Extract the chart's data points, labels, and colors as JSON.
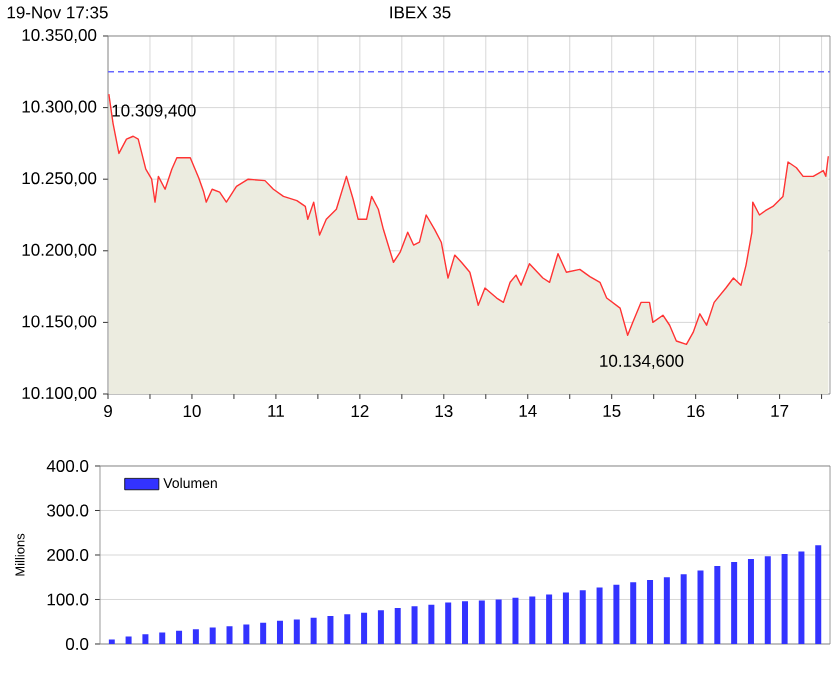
{
  "chart_data": [
    {
      "type": "area",
      "title": "IBEX 35",
      "annotations": [
        "19-Nov 17:35",
        {
          "text": "10.309,400",
          "x": 9.01,
          "y": 10309.4
        },
        {
          "text": "10.134,600",
          "x": 15.89,
          "y": 10134.6
        }
      ],
      "series": [
        {
          "color": "#ff3333",
          "x": [
            9.01,
            9.06,
            9.13,
            9.22,
            9.3,
            9.36,
            9.45,
            9.52,
            9.56,
            9.6,
            9.68,
            9.76,
            9.82,
            9.98,
            10.08,
            10.14,
            10.17,
            10.24,
            10.33,
            10.41,
            10.53,
            10.67,
            10.87,
            10.97,
            11.09,
            11.25,
            11.35,
            11.38,
            11.45,
            11.52,
            11.6,
            11.72,
            11.84,
            11.92,
            11.98,
            12.08,
            12.14,
            12.22,
            12.28,
            12.4,
            12.48,
            12.57,
            12.64,
            12.71,
            12.79,
            12.89,
            12.97,
            13.05,
            13.13,
            13.21,
            13.31,
            13.41,
            13.49,
            13.63,
            13.71,
            13.79,
            13.86,
            13.92,
            14.02,
            14.18,
            14.26,
            14.36,
            14.46,
            14.62,
            14.74,
            14.86,
            14.94,
            15.1,
            15.19,
            15.25,
            15.35,
            15.45,
            15.49,
            15.61,
            15.69,
            15.77,
            15.89,
            15.97,
            16.05,
            16.13,
            16.22,
            16.36,
            16.45,
            16.54,
            16.6,
            16.67,
            16.68,
            16.76,
            16.83,
            16.92,
            17.04,
            17.1,
            17.2,
            17.28,
            17.4,
            17.52,
            17.55,
            17.58
          ],
          "values": [
            10309.4,
            10289,
            10268,
            10278,
            10280,
            10278,
            10257,
            10250,
            10234,
            10252,
            10243,
            10257,
            10265,
            10265,
            10251,
            10241,
            10234,
            10243,
            10241,
            10234,
            10245,
            10250,
            10249,
            10243,
            10238,
            10235,
            10231,
            10222,
            10234,
            10211,
            10222,
            10229,
            10252,
            10236,
            10222,
            10222,
            10238,
            10229,
            10215,
            10192,
            10199,
            10213,
            10204,
            10206,
            10225,
            10215,
            10206,
            10181,
            10197,
            10192,
            10185,
            10162,
            10174,
            10167,
            10164,
            10178,
            10183,
            10176,
            10191,
            10181,
            10178,
            10198,
            10185,
            10187,
            10182,
            10178,
            10167,
            10160,
            10141,
            10150,
            10164,
            10164,
            10150,
            10155,
            10148,
            10137,
            10134.6,
            10143,
            10156,
            10148,
            10164,
            10174,
            10181,
            10176,
            10190,
            10213,
            10234,
            10225,
            10228,
            10231,
            10238,
            10262,
            10258,
            10252,
            10252,
            10256,
            10252,
            10266
          ]
        }
      ],
      "xlim": [
        9,
        17.6
      ],
      "xticks": [
        9,
        {
          "value": 9.5,
          "label": null
        },
        10,
        {
          "value": 10.5,
          "label": null
        },
        11,
        {
          "value": 11.5,
          "label": null
        },
        12,
        {
          "value": 12.5,
          "label": null
        },
        13,
        {
          "value": 13.5,
          "label": null
        },
        14,
        {
          "value": 14.5,
          "label": null
        },
        15,
        {
          "value": 15.5,
          "label": null
        },
        16,
        {
          "value": 16.5,
          "label": null
        },
        17,
        {
          "value": 17.5,
          "label": null
        }
      ],
      "ylim": [
        10100,
        10350
      ],
      "yticks": [
        {
          "value": 10100,
          "label": "10.100,00"
        },
        {
          "value": 10150,
          "label": "10.150,00"
        },
        {
          "value": 10200,
          "label": "10.200,00"
        },
        {
          "value": 10250,
          "label": "10.250,00"
        },
        {
          "value": 10300,
          "label": "10.300,00"
        },
        {
          "value": 10350,
          "label": "10.350,00"
        }
      ],
      "grid": true,
      "ref_lines": [
        {
          "axis": "y",
          "value": 10325,
          "color": "#6666ff",
          "line_style": "dashed"
        }
      ]
    },
    {
      "type": "bar",
      "ylabel": "Millions",
      "legend": "top left",
      "categories": [
        null,
        null,
        null,
        null,
        null,
        null,
        null,
        null,
        null,
        null,
        null,
        null,
        null,
        null,
        null,
        null,
        null,
        null,
        null,
        null,
        null,
        null,
        null,
        null,
        null,
        null,
        null,
        null,
        null,
        null,
        null,
        null,
        null,
        null,
        null,
        null,
        null,
        null,
        null,
        null,
        null,
        null,
        null
      ],
      "series": [
        {
          "name": "Volumen",
          "color": "#3333ff",
          "values": [
            10,
            17,
            22,
            26,
            30,
            33,
            37,
            40,
            44,
            48,
            52,
            55,
            59,
            63,
            67,
            70,
            76,
            81,
            85,
            88,
            93,
            96,
            98,
            100,
            104,
            107,
            111,
            116,
            121,
            127,
            133,
            139,
            144,
            150,
            157,
            165,
            175,
            184,
            191,
            197,
            202,
            208,
            222
          ]
        }
      ],
      "ylim": [
        0,
        400
      ],
      "yticks": [
        {
          "value": 0,
          "label": "0.0"
        },
        {
          "value": 100,
          "label": "100.0"
        },
        {
          "value": 200,
          "label": "200.0"
        },
        {
          "value": 300,
          "label": "300.0"
        },
        {
          "value": 400,
          "label": "400.0"
        }
      ],
      "grid": "y"
    }
  ]
}
